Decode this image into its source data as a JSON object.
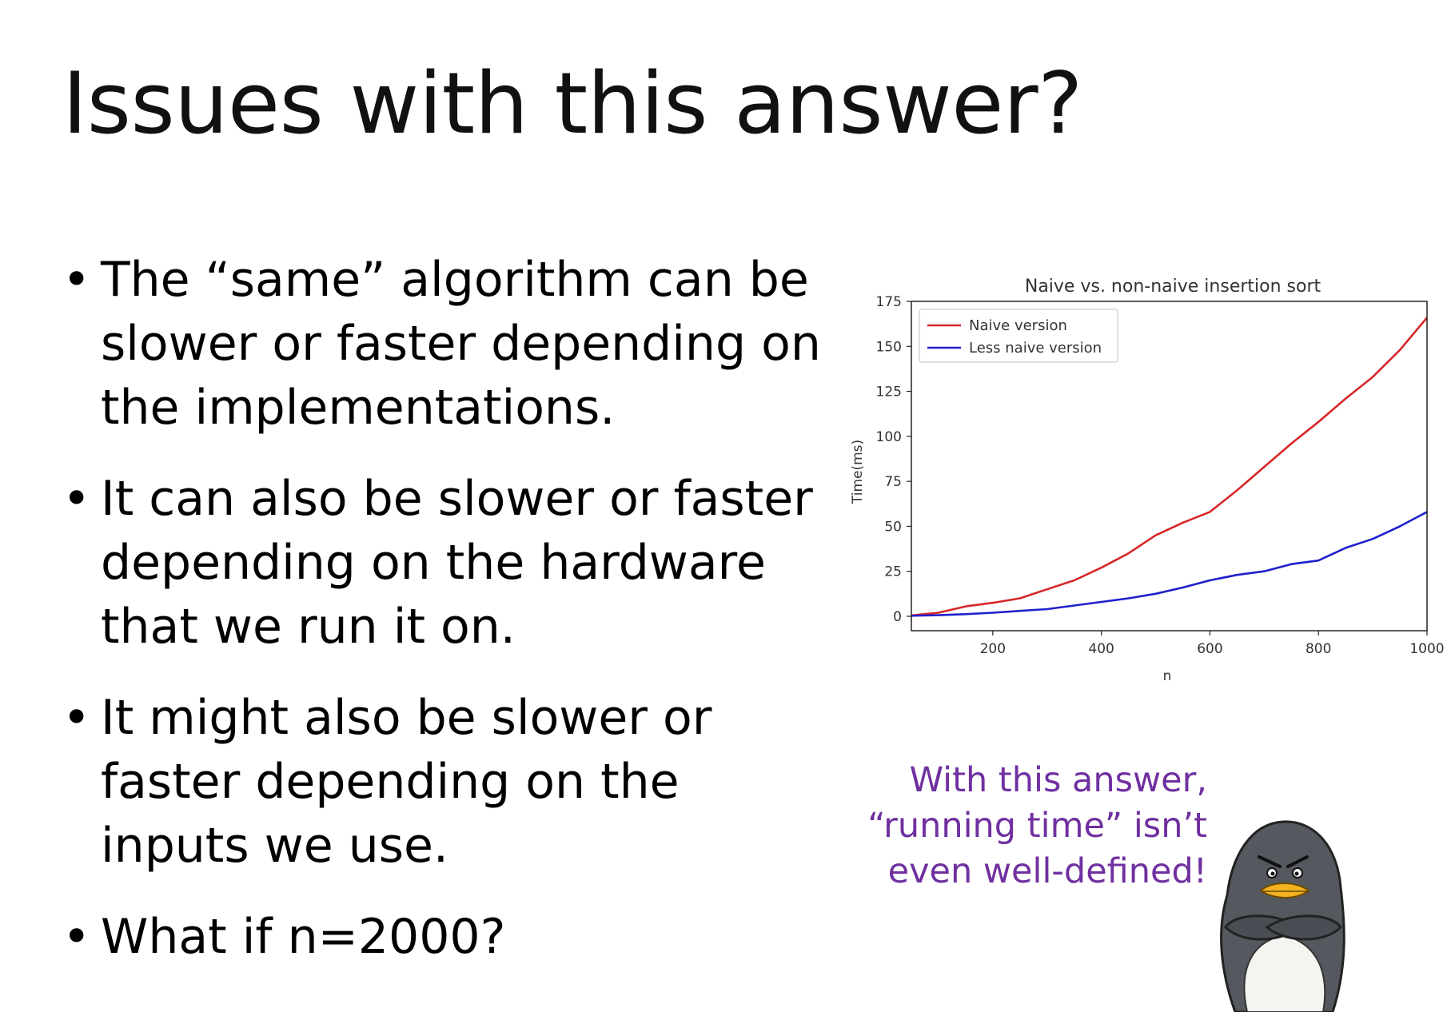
{
  "slide": {
    "title": "Issues with this answer?",
    "bullets": [
      "The “same” algorithm can be slower or faster depending on  the implementations.",
      "It can also be slower or faster depending on the hardware that we run it on.",
      "It might also be slower or faster depending on the inputs we use.",
      "What if n=2000?"
    ],
    "caption": "With this answer, “running time” isn’t even well-defined!",
    "caption_color": "#7030a0",
    "illustration_icon": "grumpy-penguin-icon"
  },
  "chart_data": {
    "type": "line",
    "title": "Naive vs. non-naive insertion sort",
    "xlabel": "n",
    "ylabel": "Time(ms)",
    "xlim": [
      50,
      1000
    ],
    "ylim": [
      -8,
      175
    ],
    "xticks": [
      200,
      400,
      600,
      800,
      1000
    ],
    "yticks": [
      0,
      25,
      50,
      75,
      100,
      125,
      150,
      175
    ],
    "legend_position": "top-left",
    "grid": false,
    "series": [
      {
        "name": "Naive version",
        "color": "#d62728",
        "x": [
          50,
          100,
          150,
          200,
          250,
          300,
          350,
          400,
          450,
          500,
          550,
          600,
          650,
          700,
          750,
          800,
          850,
          900,
          950,
          1000
        ],
        "y": [
          0.5,
          2,
          5.5,
          7.5,
          10,
          15,
          20,
          27,
          35,
          45,
          52,
          58,
          70,
          83,
          96,
          108,
          121,
          133,
          148,
          166
        ]
      },
      {
        "name": "Less naive version",
        "color": "#2020cc",
        "x": [
          50,
          100,
          150,
          200,
          250,
          300,
          350,
          400,
          450,
          500,
          550,
          600,
          650,
          700,
          750,
          800,
          850,
          900,
          950,
          1000
        ],
        "y": [
          0.3,
          0.6,
          1.2,
          2,
          3,
          4,
          6,
          8,
          10,
          12.5,
          16,
          20,
          23,
          25,
          29,
          31,
          38,
          43,
          50,
          58
        ]
      }
    ]
  }
}
